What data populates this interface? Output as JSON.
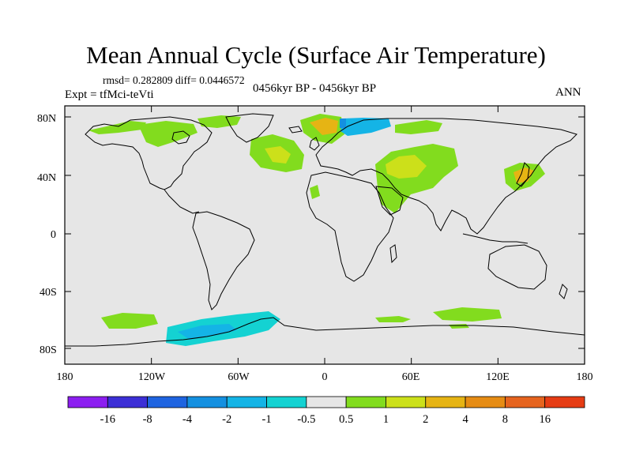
{
  "header": {
    "title": "Mean Annual Cycle (Surface Air Temperature)",
    "stats": "rmsd= 0.282809 diff= 0.0446572",
    "experiment": "Expt = tfMci-teVti",
    "period": "0456kyr BP - 0456kyr BP",
    "season": "ANN"
  },
  "map": {
    "projection": "cylindrical-equidistant",
    "background_color": "#e6e6e6",
    "coastline_color": "#000000",
    "lat_ticks": [
      "80N",
      "40N",
      "0",
      "40S",
      "80S"
    ],
    "lon_ticks": [
      "180",
      "120W",
      "60W",
      "0",
      "60E",
      "120E",
      "180"
    ],
    "anomaly_regions": [
      {
        "region": "Alaska / Beaufort coast",
        "class": "0.5 to 1"
      },
      {
        "region": "northern Canada / Hudson Bay",
        "class": "0.5 to 1"
      },
      {
        "region": "Greenland / Labrador Sea",
        "class": "0.5 to 1"
      },
      {
        "region": "North Atlantic",
        "class": "1 to 2"
      },
      {
        "region": "Norwegian Sea",
        "class": "2 to 4"
      },
      {
        "region": "Barents Sea",
        "class": "-2 to -1"
      },
      {
        "region": "western Siberia",
        "class": "0.5 to 1"
      },
      {
        "region": "Central Asia / Caspian",
        "class": "1 to 2"
      },
      {
        "region": "Middle East",
        "class": "0.5 to 1"
      },
      {
        "region": "Japan / NW Pacific",
        "class": "2 to 4"
      },
      {
        "region": "Southern Ocean (Pacific sector)",
        "class": "0.5 to 1"
      },
      {
        "region": "West Antarctica / Ross Sea",
        "class": "-1 to -0.5"
      },
      {
        "region": "Southern Ocean (Indian sector)",
        "class": "0.5 to 1"
      }
    ]
  },
  "colorbar": {
    "labels": [
      "-16",
      "-8",
      "-4",
      "-2",
      "-1",
      "-0.5",
      "0.5",
      "1",
      "2",
      "4",
      "8",
      "16"
    ],
    "colors": [
      "#8c1ef0",
      "#3c2fd6",
      "#1e64e0",
      "#1490e0",
      "#14b4e6",
      "#14d2d2",
      "#e6e6e6",
      "#82dc1e",
      "#cce01a",
      "#e6b414",
      "#e68c14",
      "#e6641e",
      "#e63c14"
    ]
  }
}
